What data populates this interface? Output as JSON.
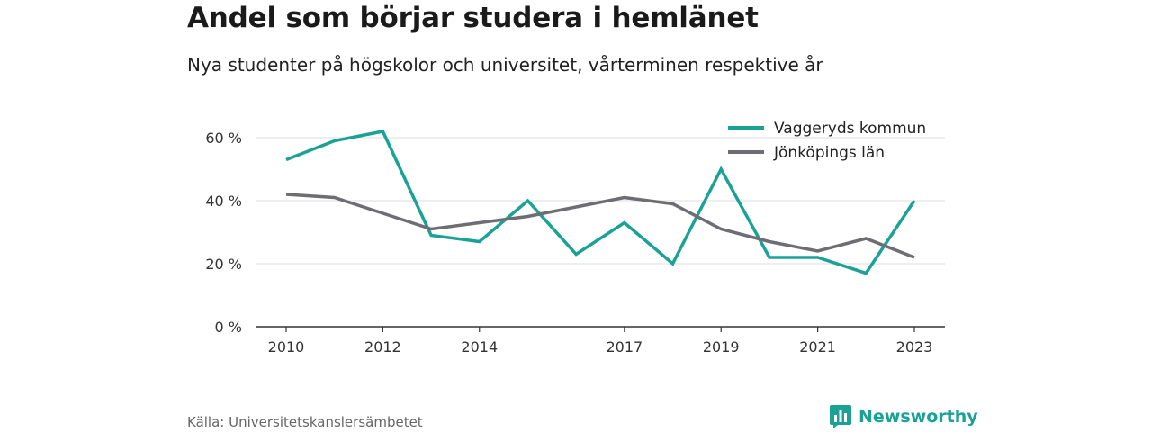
{
  "header": {
    "title": "Andel som börjar studera i hemlänet",
    "subtitle": "Nya studenter på högskolor och universitet, vårterminen respektive år"
  },
  "footer": {
    "source": "Källa: Universitetskanslersämbetet",
    "brand": "Newsworthy",
    "brand_icon": "bar-chart-logo-icon"
  },
  "colors": {
    "vaggeryd": "#1aa297",
    "jonkoping": "#6e6d73",
    "grid": "#dddddd",
    "axis": "#333333",
    "text": "#333333"
  },
  "chart_data": {
    "type": "line",
    "title": "",
    "xlabel": "",
    "ylabel": "",
    "x": [
      2010,
      2011,
      2012,
      2013,
      2014,
      2015,
      2016,
      2017,
      2018,
      2019,
      2020,
      2021,
      2022,
      2023
    ],
    "x_ticks": [
      2010,
      2012,
      2014,
      2017,
      2019,
      2021,
      2023
    ],
    "y_ticks": [
      0,
      20,
      40,
      60
    ],
    "y_tick_labels": [
      "0 %",
      "20 %",
      "40 %",
      "60 %"
    ],
    "ylim": [
      0,
      60
    ],
    "grid": true,
    "legend_position": "top-right",
    "series": [
      {
        "name": "Vaggeryds kommun",
        "color": "#1aa297",
        "values": [
          53,
          59,
          62,
          29,
          27,
          40,
          23,
          33,
          20,
          50,
          22,
          22,
          17,
          40
        ]
      },
      {
        "name": "Jönköpings län",
        "color": "#6e6d73",
        "values": [
          42,
          41,
          36,
          31,
          33,
          35,
          38,
          41,
          39,
          31,
          27,
          24,
          28,
          22
        ]
      }
    ]
  }
}
